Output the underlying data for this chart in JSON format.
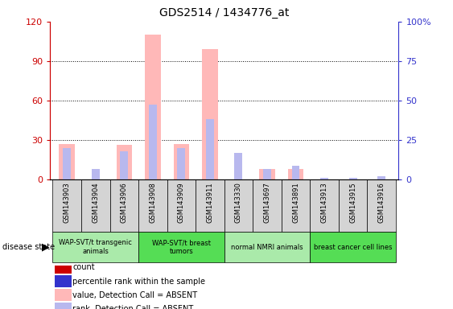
{
  "title": "GDS2514 / 1434776_at",
  "samples": [
    "GSM143903",
    "GSM143904",
    "GSM143906",
    "GSM143908",
    "GSM143909",
    "GSM143911",
    "GSM143330",
    "GSM143697",
    "GSM143891",
    "GSM143913",
    "GSM143915",
    "GSM143916"
  ],
  "value_absent": [
    27,
    0,
    26,
    110,
    27,
    99,
    0,
    8,
    8,
    0,
    0,
    0
  ],
  "rank_absent": [
    24,
    8,
    21,
    57,
    24,
    46,
    20,
    8,
    10,
    1,
    1,
    2
  ],
  "groups": [
    {
      "label": "WAP-SVT/t transgenic\nanimals",
      "start": 0,
      "end": 3,
      "color": "#aaeaaa"
    },
    {
      "label": "WAP-SVT/t breast\ntumors",
      "start": 3,
      "end": 6,
      "color": "#55dd55"
    },
    {
      "label": "normal NMRI animals",
      "start": 6,
      "end": 9,
      "color": "#aaeaaa"
    },
    {
      "label": "breast cancer cell lines",
      "start": 9,
      "end": 12,
      "color": "#55dd55"
    }
  ],
  "ylim_left": [
    0,
    120
  ],
  "ylim_right": [
    0,
    100
  ],
  "yticks_left": [
    0,
    30,
    60,
    90,
    120
  ],
  "yticks_right": [
    0,
    25,
    50,
    75,
    100
  ],
  "yticklabels_left": [
    "0",
    "30",
    "60",
    "90",
    "120"
  ],
  "yticklabels_right": [
    "0",
    "25",
    "50",
    "75",
    "100%"
  ],
  "color_count": "#cc0000",
  "color_rank": "#3333cc",
  "color_value_absent": "#ffb8b8",
  "color_rank_absent": "#b8b8ee",
  "background_color": "#ffffff",
  "sample_box_color": "#d4d4d4",
  "legend_items": [
    {
      "label": "count",
      "color": "#cc0000"
    },
    {
      "label": "percentile rank within the sample",
      "color": "#3333cc"
    },
    {
      "label": "value, Detection Call = ABSENT",
      "color": "#ffb8b8"
    },
    {
      "label": "rank, Detection Call = ABSENT",
      "color": "#b8b8ee"
    }
  ]
}
